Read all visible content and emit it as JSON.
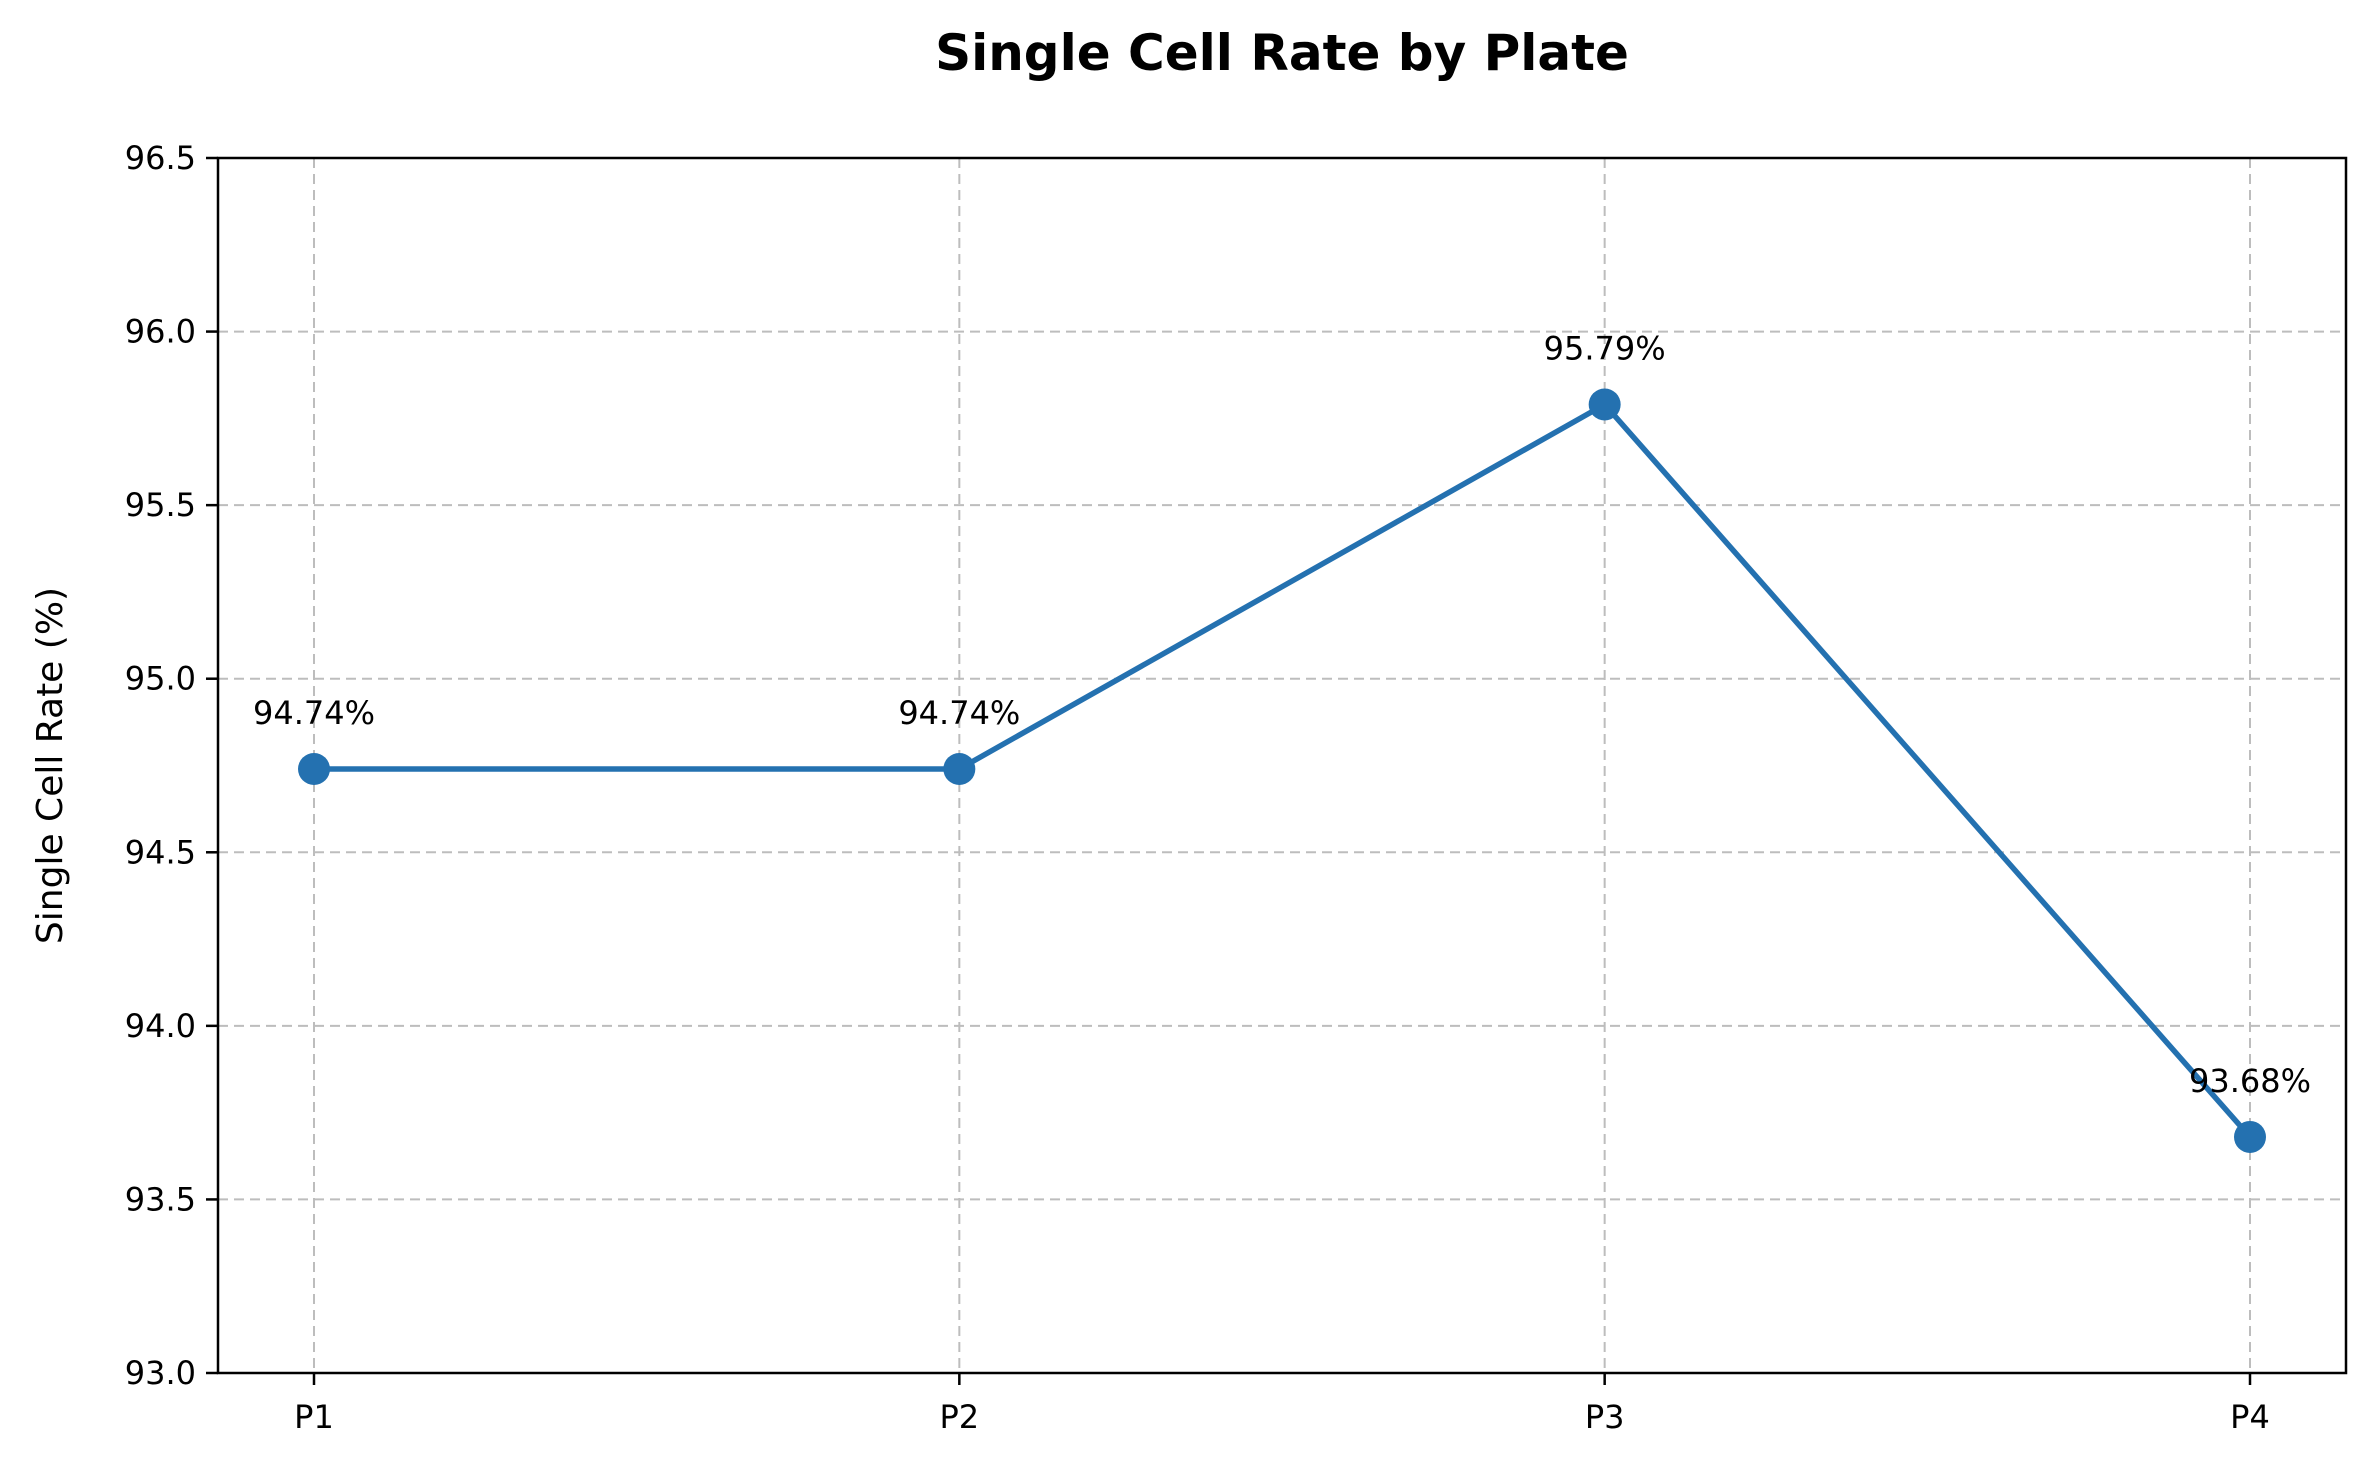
{
  "chart_data": {
    "type": "line",
    "title": "Single Cell Rate by Plate",
    "xlabel": "",
    "ylabel": "Single Cell Rate (%)",
    "categories": [
      "P1",
      "P2",
      "P3",
      "P4"
    ],
    "series": [
      {
        "values": [
          94.74,
          94.74,
          95.79,
          93.68
        ],
        "data_labels": [
          "94.74%",
          "94.74%",
          "95.79%",
          "93.68%"
        ],
        "color": "#2471b0",
        "marker": "circle"
      }
    ],
    "ylim": [
      93.0,
      96.5
    ],
    "yticks": [
      93.0,
      93.5,
      94.0,
      94.5,
      95.0,
      95.5,
      96.0,
      96.5
    ],
    "ytick_labels": [
      "93.0",
      "93.5",
      "94.0",
      "94.5",
      "95.0",
      "95.5",
      "96.0",
      "96.5"
    ],
    "grid": true,
    "grid_style": "dashed",
    "legend": false
  }
}
